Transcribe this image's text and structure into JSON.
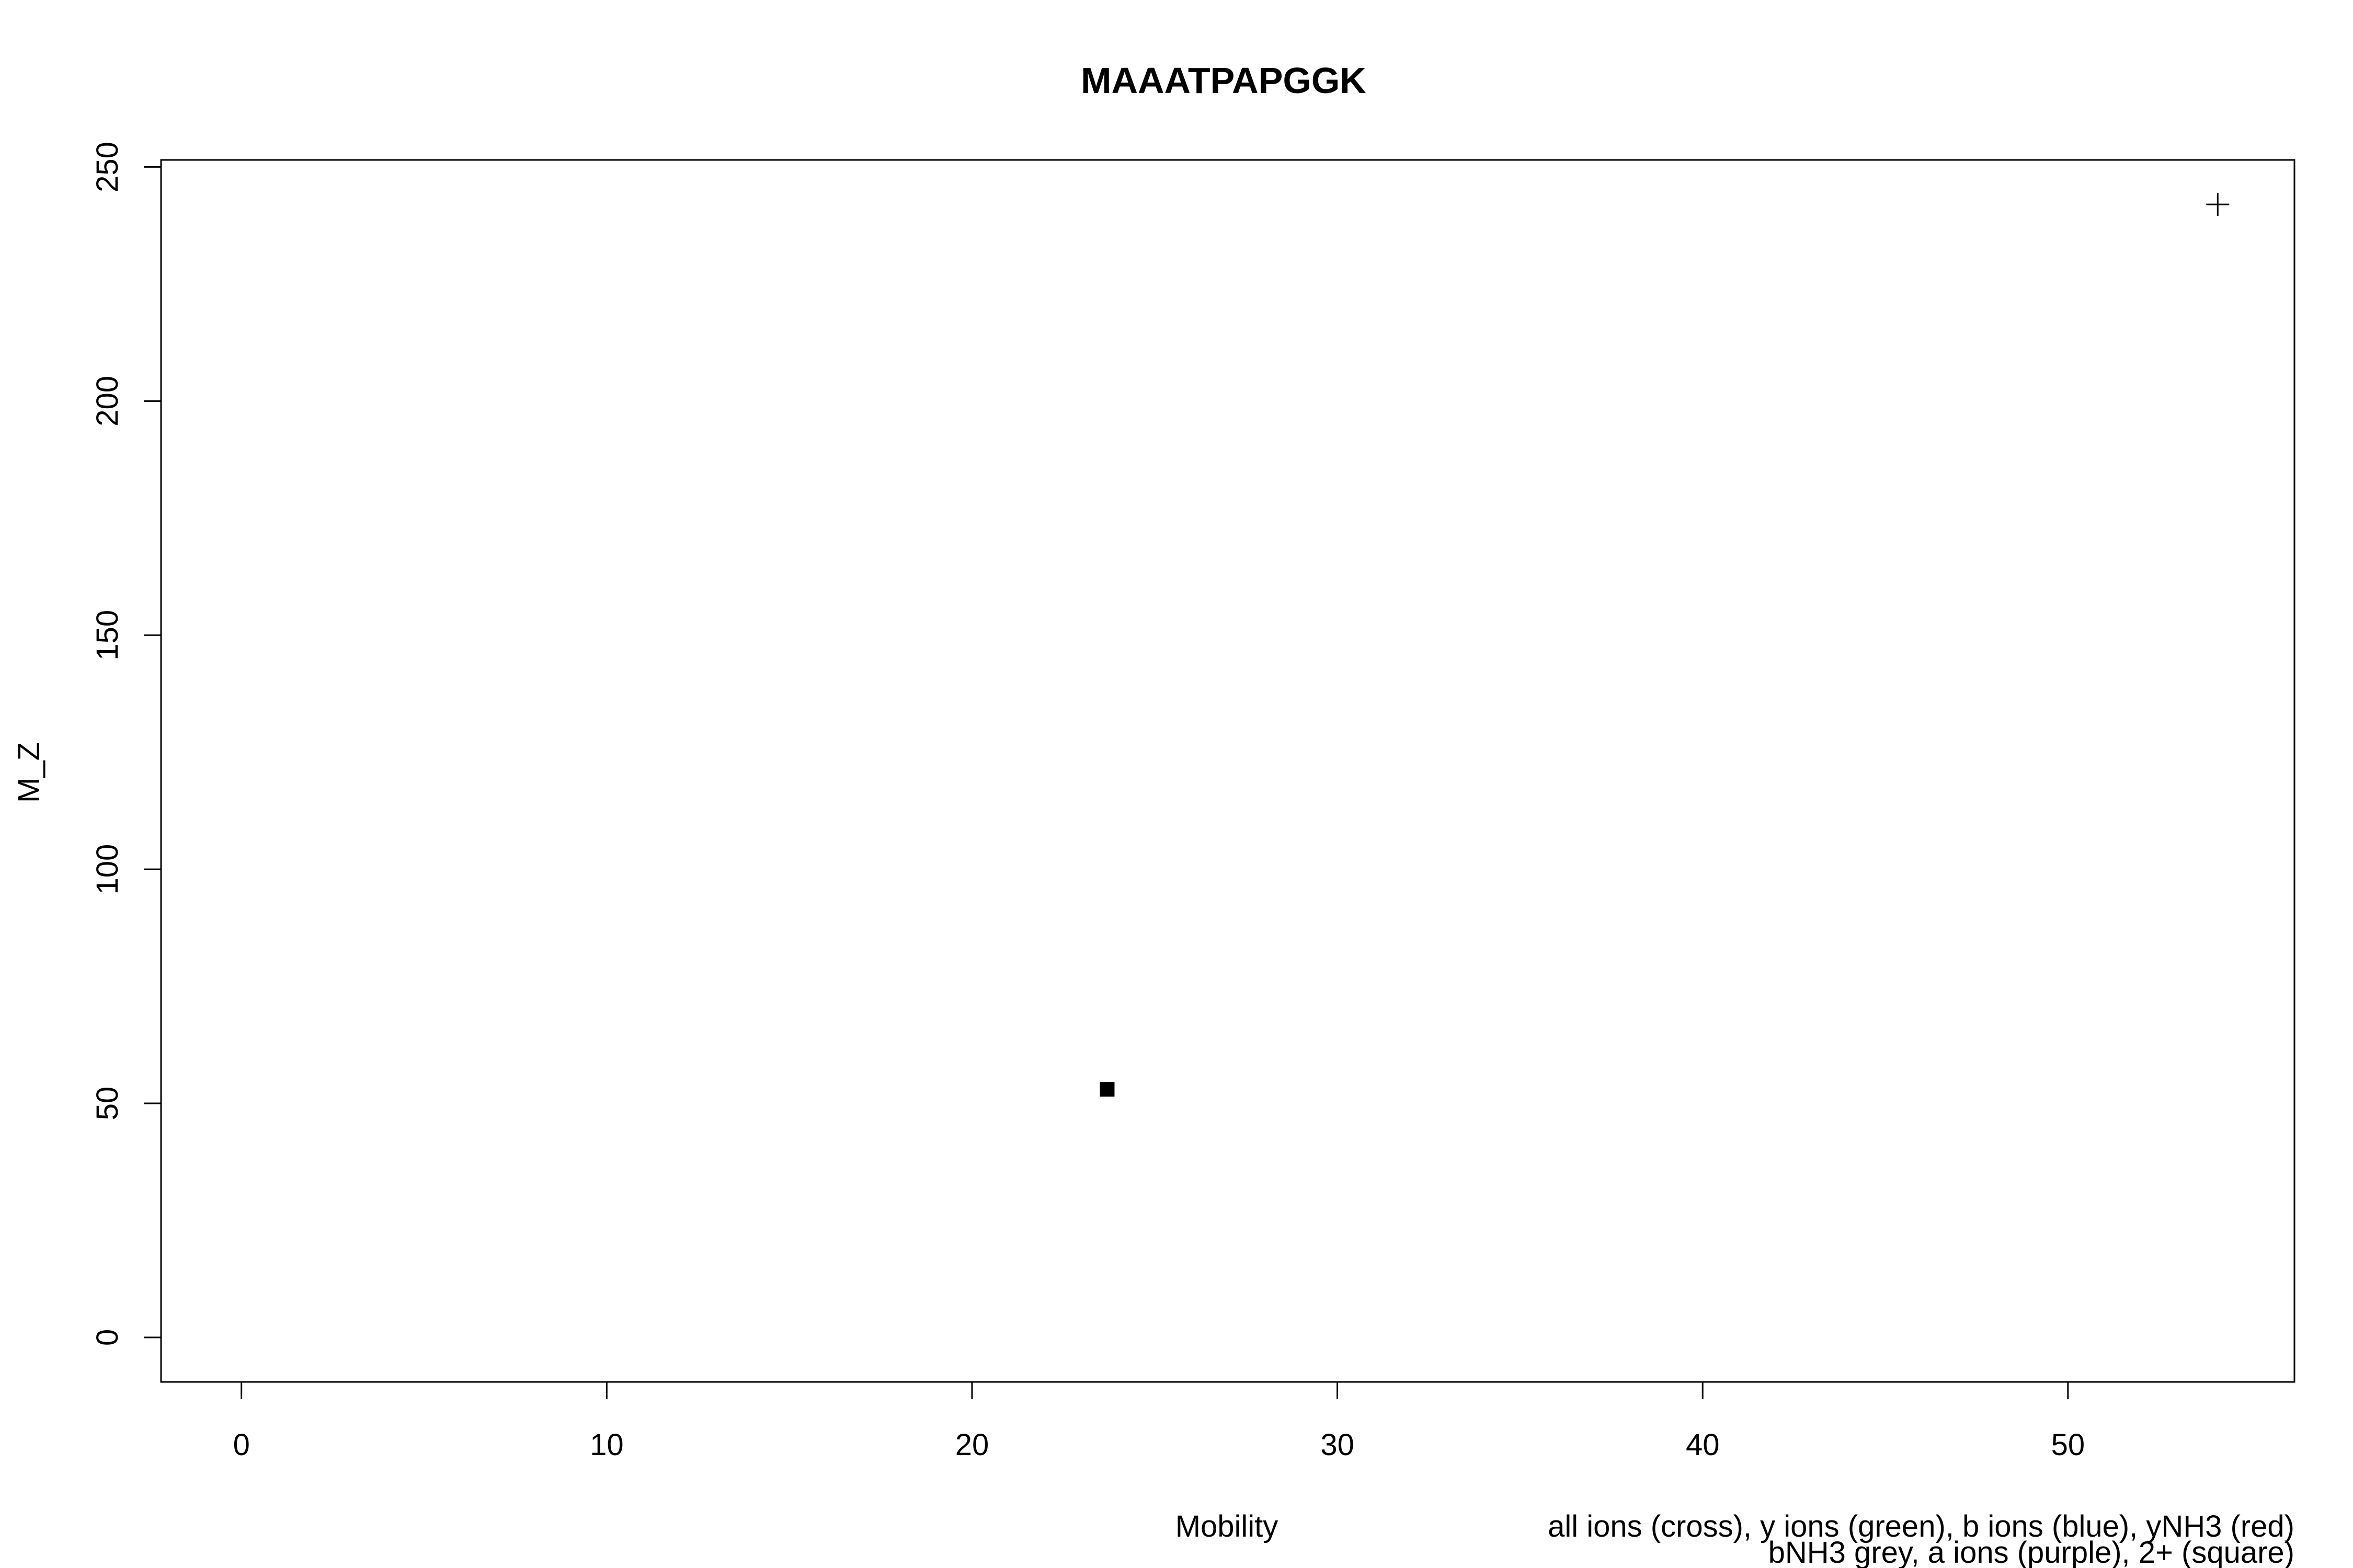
{
  "chart_data": {
    "type": "scatter",
    "title": "MAAATPAPGGK",
    "xlabel": "Mobility",
    "ylabel": "M_Z",
    "xlim": [
      -2.2,
      56.2
    ],
    "ylim": [
      -9.5,
      251.5
    ],
    "x_ticks": [
      0,
      10,
      20,
      30,
      40,
      50
    ],
    "y_ticks": [
      0,
      50,
      100,
      150,
      200,
      250
    ],
    "grid": false,
    "legend_notes": [
      "all ions (cross), y ions (green), b ions (blue), yNH3 (red)",
      "bNH3 grey, a ions (purple), 2+ (square)"
    ],
    "series": [
      {
        "marker": "cross",
        "color": "#000000",
        "points": [
          {
            "x": 54.1,
            "y": 242
          }
        ]
      },
      {
        "marker": "square",
        "color": "#000000",
        "points": [
          {
            "x": 23.7,
            "y": 53
          }
        ]
      }
    ]
  }
}
